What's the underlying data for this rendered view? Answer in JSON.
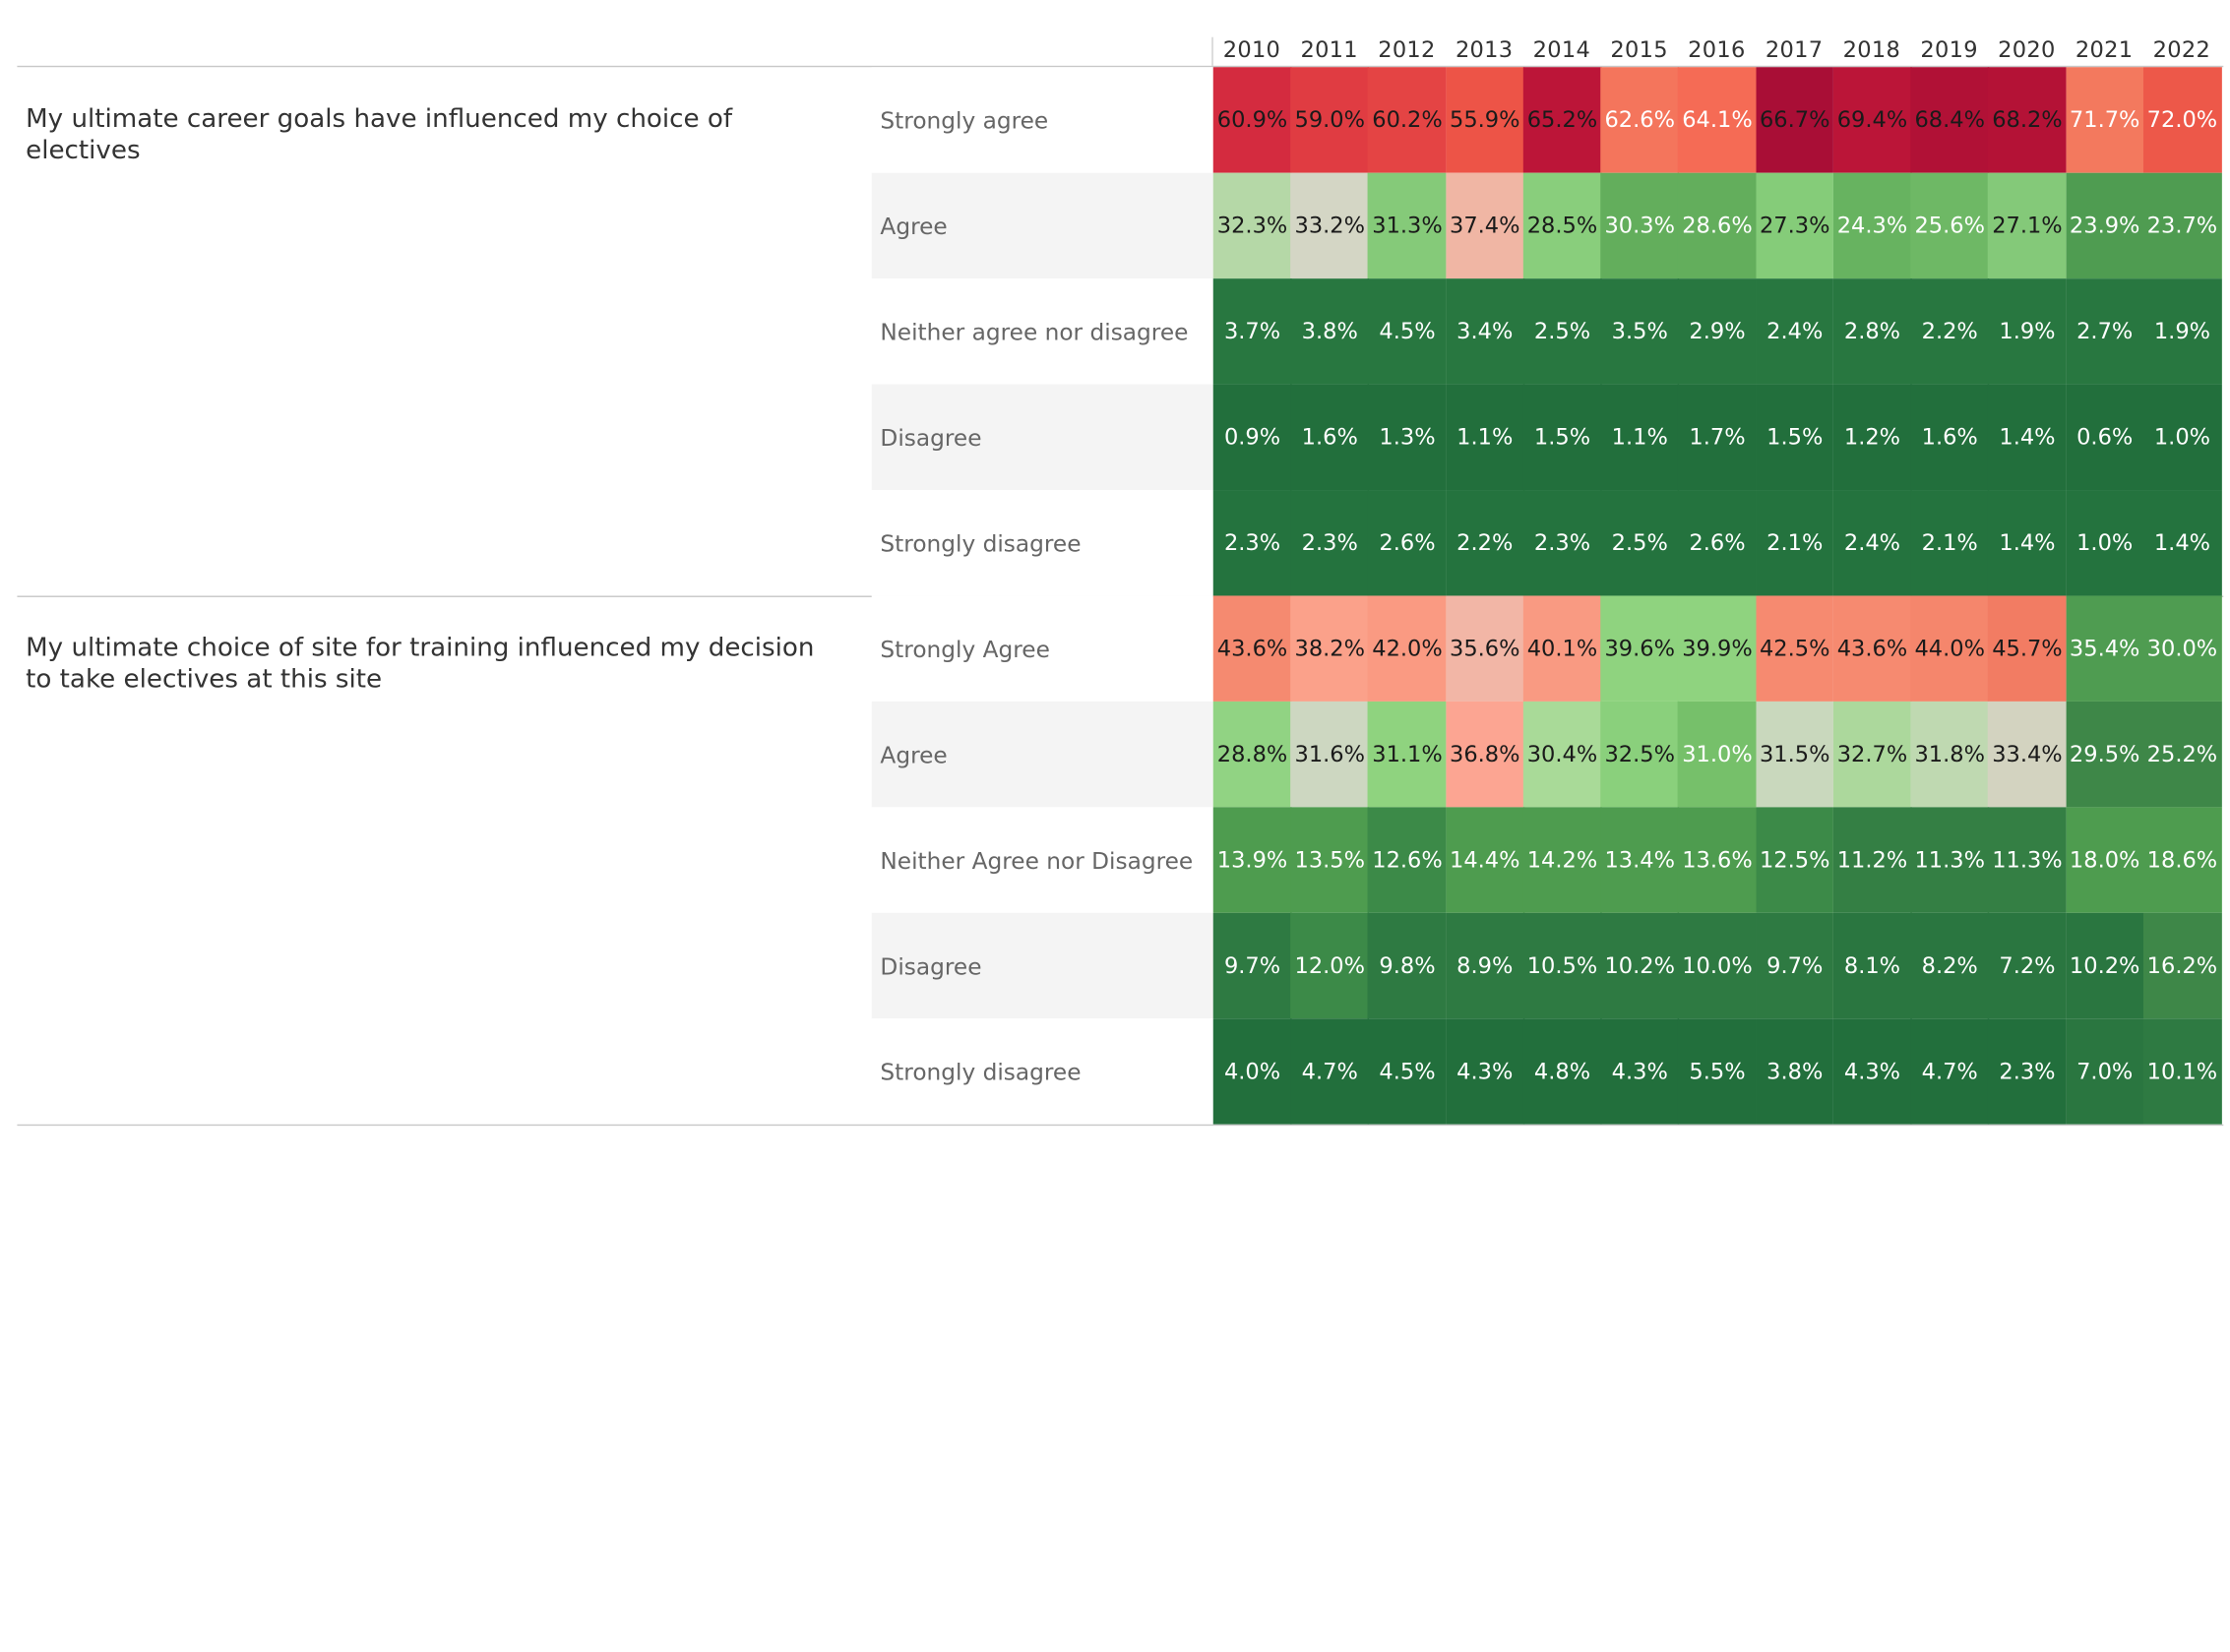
{
  "chart_data": {
    "type": "heatmap",
    "x": [
      "2010",
      "2011",
      "2012",
      "2013",
      "2014",
      "2015",
      "2016",
      "2017",
      "2018",
      "2019",
      "2020",
      "2021",
      "2022"
    ],
    "questions": [
      {
        "question": "My ultimate career goals have influenced my choice of electives",
        "rows": [
          {
            "label": "Strongly agree",
            "values": [
              "60.9%",
              "59.0%",
              "60.2%",
              "55.9%",
              "65.2%",
              "62.6%",
              "64.1%",
              "66.7%",
              "69.4%",
              "68.4%",
              "68.2%",
              "71.7%",
              "72.0%"
            ],
            "colors": [
              "#d42b3f",
              "#e03c42",
              "#e44444",
              "#ed5447",
              "#bc1538",
              "#f4755c",
              "#f56b55",
              "#a90e36",
              "#bb1538",
              "#b11136",
              "#b41236",
              "#f3795e",
              "#ed5849"
            ]
          },
          {
            "label": "Agree",
            "values": [
              "32.3%",
              "33.2%",
              "31.3%",
              "37.4%",
              "28.5%",
              "30.3%",
              "28.6%",
              "27.3%",
              "24.3%",
              "25.6%",
              "27.1%",
              "23.9%",
              "23.7%"
            ],
            "colors": [
              "#b5d8a7",
              "#d4d6c5",
              "#85ca79",
              "#f0b6a4",
              "#89ce7c",
              "#63ae5c",
              "#63ae5c",
              "#85cc79",
              "#67b360",
              "#6eb865",
              "#84c979",
              "#4f9c51",
              "#4f9c51"
            ]
          },
          {
            "label": "Neither agree nor disagree",
            "values": [
              "3.7%",
              "3.8%",
              "4.5%",
              "3.4%",
              "2.5%",
              "3.5%",
              "2.9%",
              "2.4%",
              "2.8%",
              "2.2%",
              "1.9%",
              "2.7%",
              "1.9%"
            ],
            "colors": [
              "#287740",
              "#287740",
              "#287740",
              "#287740",
              "#287740",
              "#287740",
              "#287740",
              "#287740",
              "#287740",
              "#287740",
              "#287740",
              "#287740",
              "#287740"
            ]
          },
          {
            "label": "Disagree",
            "values": [
              "0.9%",
              "1.6%",
              "1.3%",
              "1.1%",
              "1.5%",
              "1.1%",
              "1.7%",
              "1.5%",
              "1.2%",
              "1.6%",
              "1.4%",
              "0.6%",
              "1.0%"
            ],
            "colors": [
              "#226f3c",
              "#226f3c",
              "#226f3c",
              "#226f3c",
              "#226f3c",
              "#226f3c",
              "#226f3c",
              "#226f3c",
              "#226f3c",
              "#226f3c",
              "#226f3c",
              "#226f3c",
              "#226f3c"
            ]
          },
          {
            "label": "Strongly disagree",
            "values": [
              "2.3%",
              "2.3%",
              "2.6%",
              "2.2%",
              "2.3%",
              "2.5%",
              "2.6%",
              "2.1%",
              "2.4%",
              "2.1%",
              "1.4%",
              "1.0%",
              "1.4%"
            ],
            "colors": [
              "#24733e",
              "#24733e",
              "#24733e",
              "#24733e",
              "#24733e",
              "#24733e",
              "#24733e",
              "#24733e",
              "#24733e",
              "#24733e",
              "#24733e",
              "#24733e",
              "#24733e"
            ]
          }
        ]
      },
      {
        "question": "My ultimate choice of site for training influenced my decision to take electives at this site",
        "rows": [
          {
            "label": "Strongly Agree",
            "values": [
              "43.6%",
              "38.2%",
              "42.0%",
              "35.6%",
              "40.1%",
              "39.6%",
              "39.9%",
              "42.5%",
              "43.6%",
              "44.0%",
              "45.7%",
              "35.4%",
              "30.0%"
            ],
            "colors": [
              "#f58a70",
              "#fba18a",
              "#fa9a82",
              "#f2b6a6",
              "#f99a82",
              "#8fd37f",
              "#8fd37f",
              "#f68a70",
              "#f68a70",
              "#f5866c",
              "#f27c63",
              "#4f9c51",
              "#4f9c51"
            ]
          },
          {
            "label": "Agree",
            "values": [
              "28.8%",
              "31.6%",
              "31.1%",
              "36.8%",
              "30.4%",
              "32.5%",
              "31.0%",
              "31.5%",
              "32.7%",
              "31.8%",
              "33.4%",
              "29.5%",
              "25.2%"
            ],
            "colors": [
              "#91d383",
              "#cdd7c1",
              "#8fd37f",
              "#fca592",
              "#a9da98",
              "#8ad07c",
              "#76c06a",
              "#c9d8bd",
              "#acd89c",
              "#bfd9b1",
              "#d3d3c0",
              "#3e8748",
              "#3e8748"
            ]
          },
          {
            "label": "Neither Agree nor Disagree",
            "values": [
              "13.9%",
              "13.5%",
              "12.6%",
              "14.4%",
              "14.2%",
              "13.4%",
              "13.6%",
              "12.5%",
              "11.2%",
              "11.3%",
              "11.3%",
              "18.0%",
              "18.6%"
            ],
            "colors": [
              "#4e9c4f",
              "#4e9c4f",
              "#3c8a48",
              "#4e9c4f",
              "#4e9c4f",
              "#4e9c4f",
              "#4e9c4f",
              "#3c8a48",
              "#347f44",
              "#347f44",
              "#347f44",
              "#4e9c4f",
              "#4e9c4f"
            ]
          },
          {
            "label": "Disagree",
            "values": [
              "9.7%",
              "12.0%",
              "9.8%",
              "8.9%",
              "10.5%",
              "10.2%",
              "10.0%",
              "9.7%",
              "8.1%",
              "8.2%",
              "7.2%",
              "10.2%",
              "16.2%"
            ],
            "colors": [
              "#2e7a42",
              "#3c8a48",
              "#2e7a42",
              "#2e7a42",
              "#2e7a42",
              "#2e7a42",
              "#2e7a42",
              "#2e7a42",
              "#2a7640",
              "#2a7640",
              "#2a7640",
              "#2a7640",
              "#3e8748"
            ]
          },
          {
            "label": "Strongly disagree",
            "values": [
              "4.0%",
              "4.7%",
              "4.5%",
              "4.3%",
              "4.8%",
              "4.3%",
              "5.5%",
              "3.8%",
              "4.3%",
              "4.7%",
              "2.3%",
              "7.0%",
              "10.1%"
            ],
            "colors": [
              "#226f3c",
              "#226f3c",
              "#226f3c",
              "#226f3c",
              "#226f3c",
              "#226f3c",
              "#226f3c",
              "#226f3c",
              "#226f3c",
              "#226f3c",
              "#226f3c",
              "#2a7640",
              "#2e7a42"
            ]
          }
        ]
      }
    ]
  }
}
